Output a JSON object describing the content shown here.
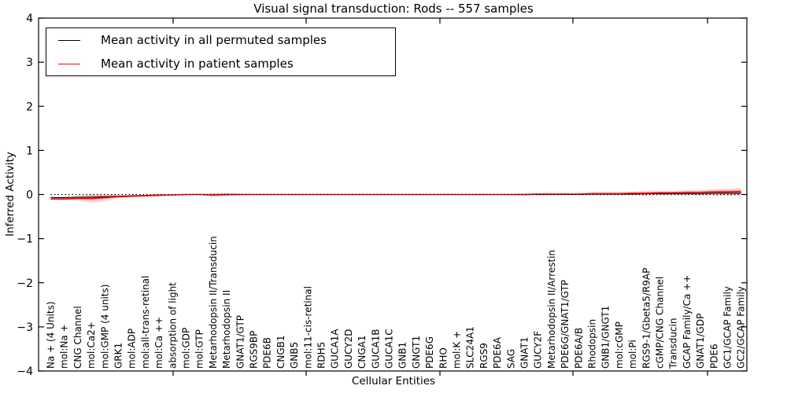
{
  "chart_data": {
    "type": "line",
    "title": "Visual signal transduction: Rods -- 557 samples",
    "xlabel": "Cellular Entities",
    "ylabel": "Inferred Activity",
    "ylim": [
      -4,
      4
    ],
    "yticks": [
      4,
      3,
      2,
      1,
      0,
      -1,
      -2,
      -3,
      -4
    ],
    "ytick_labels": [
      "4",
      "3",
      "2",
      "1",
      "0",
      "−1",
      "−2",
      "−3",
      "−4"
    ],
    "grid": false,
    "legend_position": "upper left",
    "zero_line": {
      "value": 0,
      "style": "dotted",
      "color": "#000000"
    },
    "categories": [
      "Na + (4 Units)",
      "mol:Na +",
      "CNG Channel",
      "mol:Ca2+",
      "mol:GMP (4 units)",
      "GRK1",
      "mol:ADP",
      "mol:all-trans-retinal",
      "mol:Ca ++",
      "absorption of light",
      "mol:GDP",
      "mol:GTP",
      "Metarhodopsin II/Transducin",
      "Metarhodopsin II",
      "GNAT1/GTP",
      "RGS9BP",
      "PDE6B",
      "CNGB1",
      "GNB5",
      "mol:11-cis-retinal",
      "RDH5",
      "GUCA1A",
      "GUCY2D",
      "CNGA1",
      "GUCA1B",
      "GUCA1C",
      "GNB1",
      "GNGT1",
      "PDE6G",
      "RHO",
      "mol:K +",
      "SLC24A1",
      "RGS9",
      "PDE6A",
      "SAG",
      "GNAT1",
      "GUCY2F",
      "Metarhodopsin II/Arrestin",
      "PDE6G/GNAT1/GTP",
      "PDE6A/B",
      "Rhodopsin",
      "GNB1/GNGT1",
      "mol:cGMP",
      "mol:Pi",
      "RGS9-1/Gbeta5/R9AP",
      "cGMP/CNG Channel",
      "Transducin",
      "GCAP Family/Ca ++",
      "GNAT1/GDP",
      "PDE6",
      "GC1/GCAP Family",
      "GC2/GCAP Family"
    ],
    "series": [
      {
        "name": "Mean activity in all permuted samples",
        "color": "#000000",
        "band_color": "#999999",
        "values": [
          -0.07,
          -0.07,
          -0.06,
          -0.06,
          -0.05,
          -0.04,
          -0.03,
          -0.02,
          -0.01,
          -0.01,
          0,
          0,
          -0.01,
          0,
          0,
          0,
          0,
          0,
          0,
          0,
          0,
          0,
          0,
          0,
          0,
          0,
          0,
          0,
          0,
          0,
          0,
          0,
          0,
          0,
          0,
          0,
          0,
          0,
          0,
          0,
          0.01,
          0.01,
          0.01,
          0.01,
          0.02,
          0.02,
          0.02,
          0.02,
          0.02,
          0.03,
          0.03,
          0.03
        ],
        "band_halfwidth": [
          0.02,
          0.02,
          0.03,
          0.06,
          0.05,
          0.03,
          0.02,
          0.01,
          0.01,
          0.01,
          0.01,
          0.01,
          0.06,
          0.05,
          0.02,
          0.01,
          0.01,
          0.01,
          0.01,
          0.01,
          0.01,
          0.01,
          0.01,
          0.01,
          0.01,
          0.01,
          0.01,
          0.01,
          0.01,
          0.01,
          0.01,
          0.01,
          0.01,
          0.01,
          0.02,
          0.03,
          0.04,
          0.03,
          0.02,
          0.02,
          0.04,
          0.04,
          0.03,
          0.03,
          0.04,
          0.04,
          0.04,
          0.05,
          0.05,
          0.06,
          0.07,
          0.07
        ]
      },
      {
        "name": "Mean activity in patient samples",
        "color": "#ff0000",
        "band_color": "#ff3333",
        "values": [
          -0.1,
          -0.1,
          -0.09,
          -0.09,
          -0.07,
          -0.05,
          -0.04,
          -0.03,
          -0.02,
          -0.01,
          0,
          0,
          -0.01,
          0,
          0,
          0,
          0,
          0,
          0,
          0,
          0,
          0,
          0,
          0,
          0,
          0,
          0,
          0,
          0,
          0,
          0,
          0,
          0,
          0,
          0,
          0,
          0.01,
          0.01,
          0.01,
          0.01,
          0.02,
          0.02,
          0.02,
          0.03,
          0.03,
          0.04,
          0.04,
          0.05,
          0.05,
          0.06,
          0.06,
          0.07
        ],
        "band_halfwidth": [
          0.03,
          0.03,
          0.05,
          0.11,
          0.08,
          0.04,
          0.02,
          0.01,
          0.01,
          0.01,
          0.01,
          0.01,
          0.03,
          0.03,
          0.02,
          0.01,
          0.01,
          0.01,
          0.01,
          0.01,
          0.01,
          0.01,
          0.01,
          0.01,
          0.01,
          0.01,
          0.01,
          0.01,
          0.01,
          0.01,
          0.01,
          0.01,
          0.01,
          0.01,
          0.01,
          0.02,
          0.02,
          0.02,
          0.02,
          0.02,
          0.03,
          0.03,
          0.03,
          0.04,
          0.06,
          0.05,
          0.04,
          0.05,
          0.05,
          0.06,
          0.08,
          0.08
        ]
      }
    ]
  }
}
